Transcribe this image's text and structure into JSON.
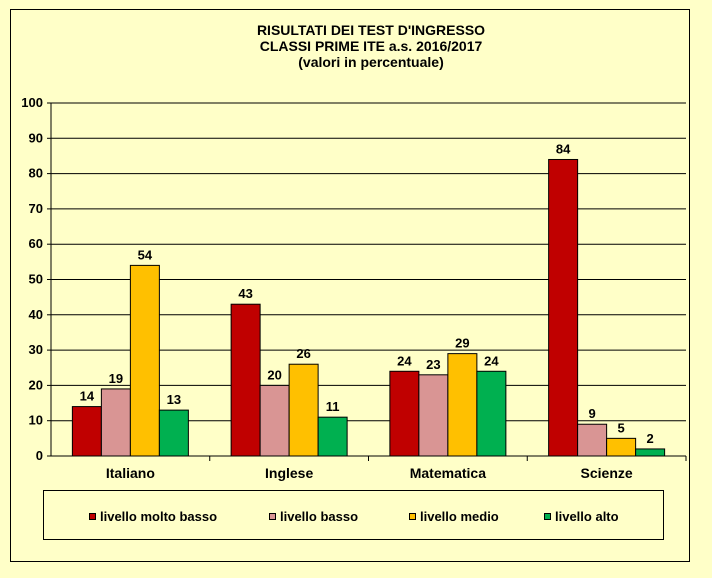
{
  "chart_data": {
    "type": "bar",
    "title_lines": [
      "RISULTATI DEI TEST D'INGRESSO",
      "CLASSI PRIME  ITE a.s. 2016/2017",
      "(valori in percentuale)"
    ],
    "categories": [
      "Italiano",
      "Inglese",
      "Matematica",
      "Scienze"
    ],
    "series": [
      {
        "name": "livello molto  basso",
        "color": "#c00000",
        "values": [
          14,
          43,
          24,
          84
        ]
      },
      {
        "name": "livello basso",
        "color": "#d99594",
        "values": [
          19,
          20,
          23,
          9
        ]
      },
      {
        "name": "livello medio",
        "color": "#ffc000",
        "values": [
          54,
          26,
          29,
          5
        ]
      },
      {
        "name": "livello alto",
        "color": "#00b050",
        "values": [
          13,
          11,
          24,
          2
        ]
      }
    ],
    "yticks": [
      "0",
      "10",
      "20",
      "30",
      "40",
      "50",
      "60",
      "70",
      "80",
      "90",
      "100"
    ],
    "ylim": [
      0,
      100
    ],
    "grid": true,
    "legend_position": "bottom",
    "plot_background": "#ffffc8"
  }
}
